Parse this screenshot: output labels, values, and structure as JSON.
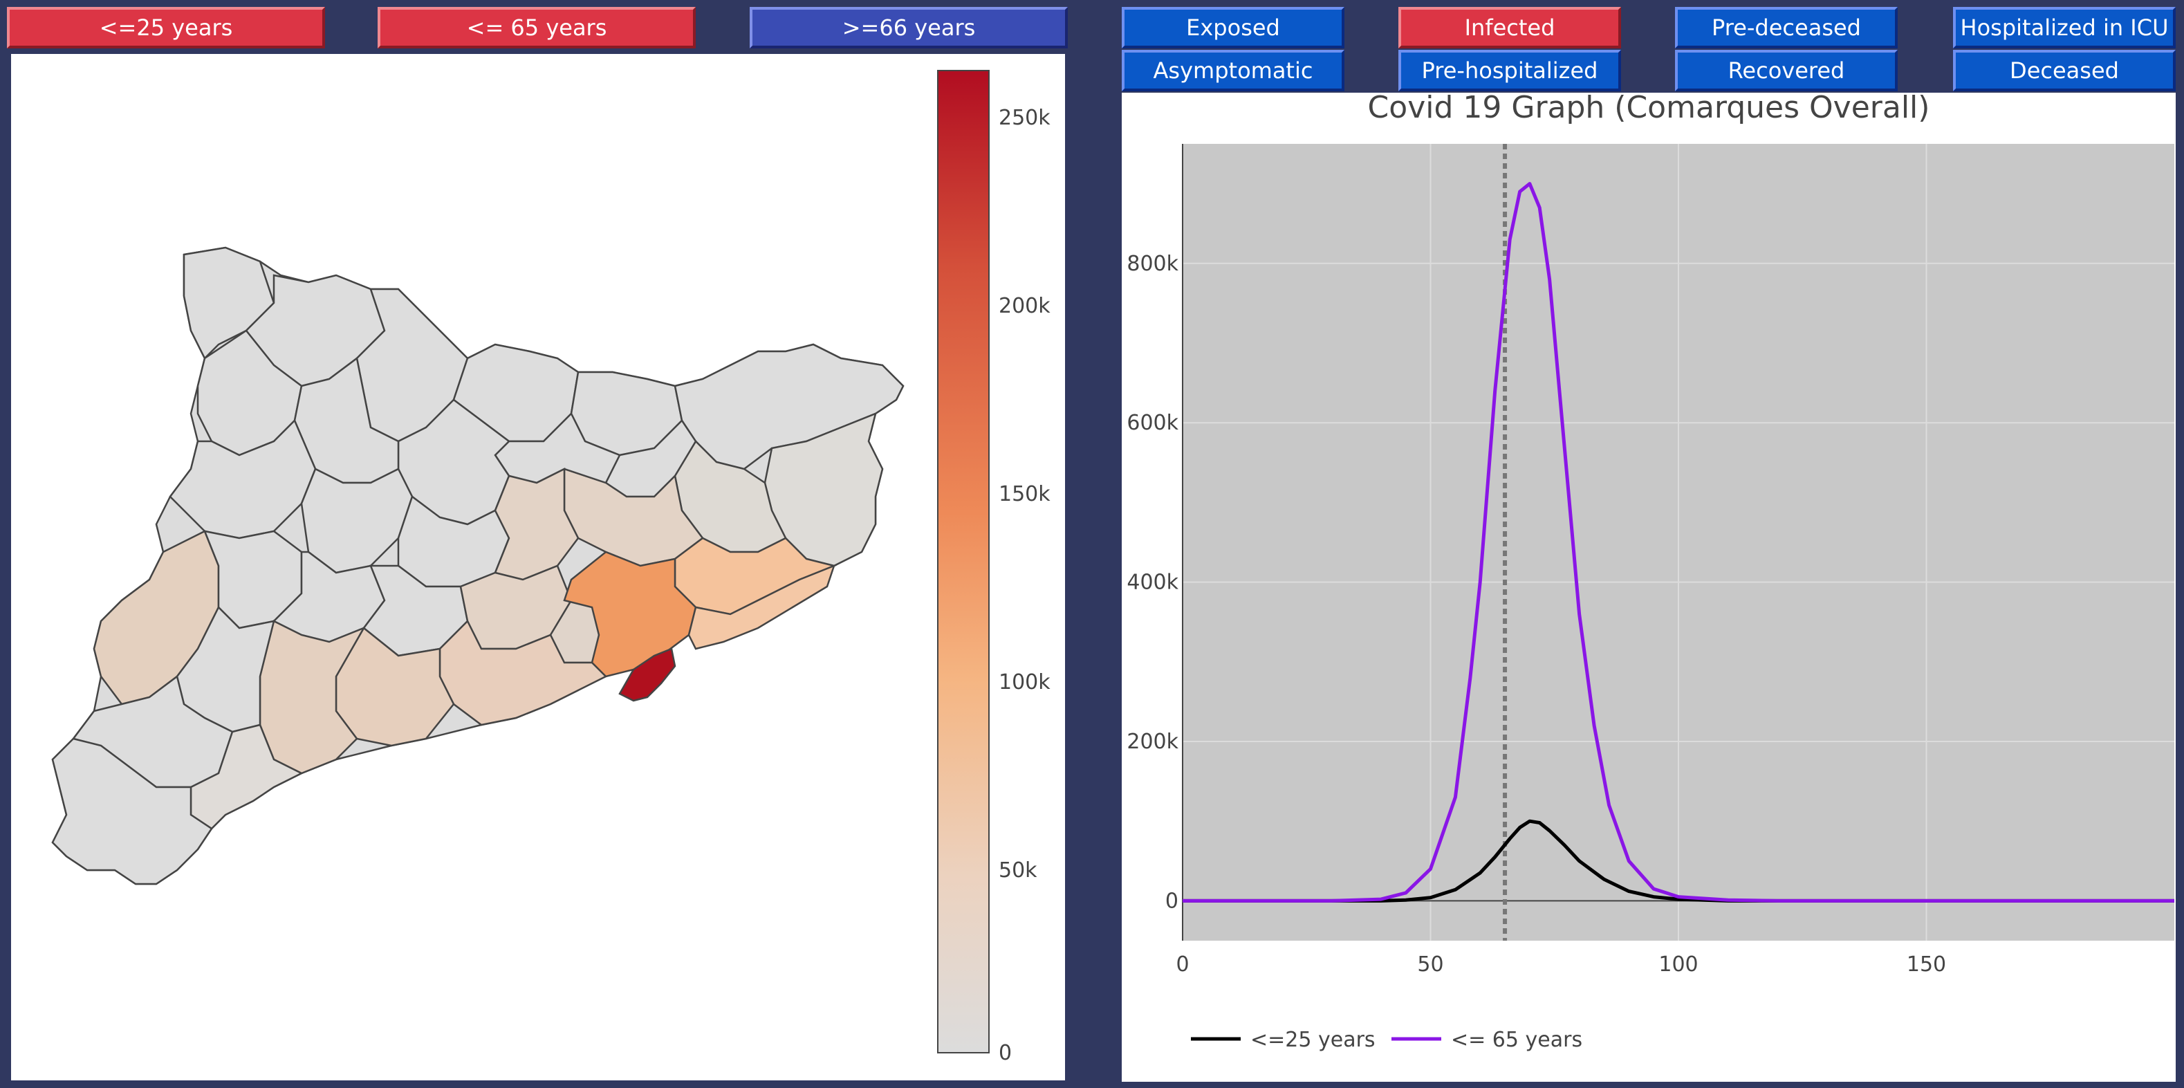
{
  "age_buttons": [
    {
      "label": "<=25 years",
      "color": "#dc3545"
    },
    {
      "label": "<= 65 years",
      "color": "#dc3545"
    },
    {
      "label": ">=66 years",
      "color": "#3a4cb4"
    }
  ],
  "state_buttons_row1": [
    {
      "label": "Exposed",
      "color": "#0a58c8"
    },
    {
      "label": "Infected",
      "color": "#dc3545"
    },
    {
      "label": "Pre-deceased",
      "color": "#0a58c8"
    },
    {
      "label": "Hospitalized in ICU",
      "color": "#0a58c8"
    }
  ],
  "state_buttons_row2": [
    {
      "label": "Asymptomatic",
      "color": "#0a58c8"
    },
    {
      "label": "Pre-hospitalized",
      "color": "#0a58c8"
    },
    {
      "label": "Recovered",
      "color": "#0a58c8"
    },
    {
      "label": "Deceased",
      "color": "#0a58c8"
    }
  ],
  "map": {
    "colorbar": {
      "ticks": [
        "250k",
        "200k",
        "150k",
        "100k",
        "50k",
        "0"
      ],
      "colors": [
        "#b10d21",
        "#d4503a",
        "#ee8a58",
        "#f5b582",
        "#ecd2bf",
        "#dcdcdc"
      ]
    }
  },
  "chart_data": {
    "type": "line",
    "title": "Covid 19 Graph (Comarques Overall)",
    "xlabel": "",
    "ylabel": "",
    "xlim": [
      0,
      200
    ],
    "ylim": [
      -50000,
      950000
    ],
    "x_ticks": [
      0,
      50,
      100,
      150
    ],
    "x_tick_labels": [
      "0",
      "50",
      "100",
      "150"
    ],
    "y_ticks": [
      0,
      200000,
      400000,
      600000,
      800000
    ],
    "y_tick_labels": [
      "0",
      "200k",
      "400k",
      "600k",
      "800k"
    ],
    "vertical_marker_x": 65,
    "background": "#c8c8c8",
    "legend_position": "bottom-left",
    "series": [
      {
        "name": "<=25 years",
        "color": "#000000",
        "x": [
          0,
          30,
          40,
          45,
          50,
          55,
          60,
          63,
          66,
          68,
          70,
          72,
          74,
          77,
          80,
          85,
          90,
          95,
          100,
          110,
          120,
          150,
          200
        ],
        "y": [
          0,
          0,
          0,
          1000,
          4000,
          14000,
          35000,
          55000,
          78000,
          92000,
          100000,
          98000,
          88000,
          70000,
          50000,
          27000,
          12000,
          5000,
          2000,
          0,
          0,
          0,
          0
        ]
      },
      {
        "name": "<= 65 years",
        "color": "#8a16e6",
        "x": [
          0,
          30,
          40,
          45,
          50,
          55,
          58,
          60,
          63,
          66,
          68,
          70,
          72,
          74,
          76,
          78,
          80,
          83,
          86,
          90,
          95,
          100,
          110,
          120,
          150,
          200
        ],
        "y": [
          0,
          0,
          2000,
          10000,
          40000,
          130000,
          280000,
          400000,
          640000,
          830000,
          890000,
          900000,
          870000,
          780000,
          640000,
          500000,
          360000,
          220000,
          120000,
          50000,
          15000,
          5000,
          1000,
          0,
          0,
          0
        ]
      }
    ]
  }
}
